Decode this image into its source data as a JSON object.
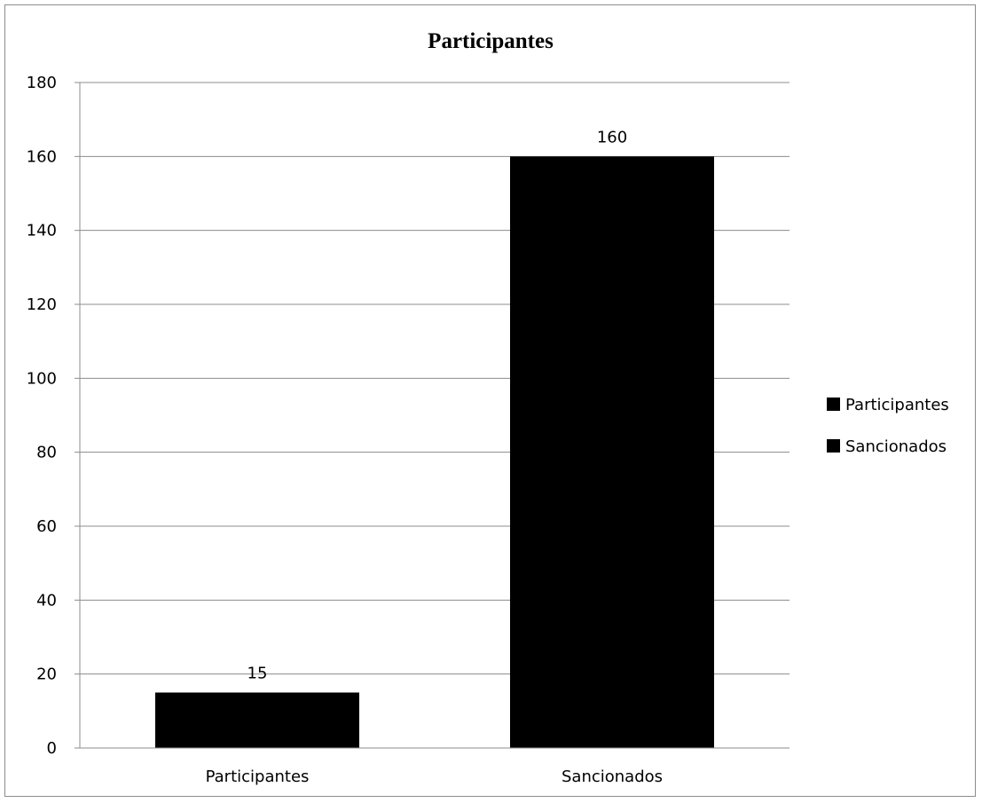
{
  "chart_data": {
    "type": "bar",
    "title": "Participantes",
    "xlabel": "",
    "ylabel": "",
    "categories": [
      "Participantes",
      "Sancionados"
    ],
    "values": [
      15,
      160
    ],
    "data_labels": [
      "15",
      "160"
    ],
    "ylim": [
      0,
      180
    ],
    "yticks": [
      0,
      20,
      40,
      60,
      80,
      100,
      120,
      140,
      160,
      180
    ],
    "grid": true,
    "legend": {
      "position": "right",
      "entries": [
        "Participantes",
        "Sancionados"
      ]
    },
    "colors": {
      "bar": "#000000",
      "grid": "#8c8c8c",
      "axis": "#8c8c8c",
      "border": "#8c8c8c"
    }
  }
}
